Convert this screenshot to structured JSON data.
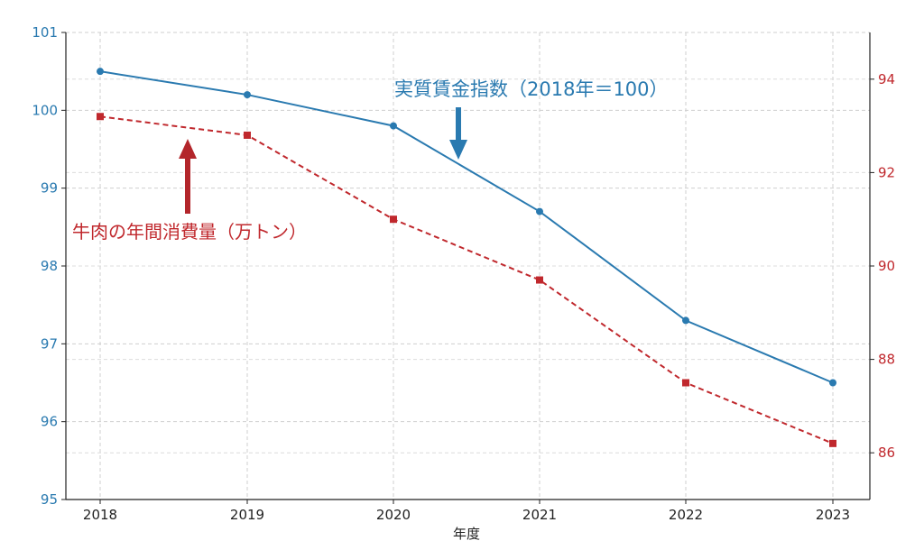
{
  "chart_data": {
    "type": "line",
    "x": [
      2018,
      2019,
      2020,
      2021,
      2022,
      2023
    ],
    "x_tick_labels": [
      "2018",
      "2019",
      "2020",
      "2021",
      "2022",
      "2023"
    ],
    "xlabel": "年度",
    "grid": true,
    "series": [
      {
        "name": "実質賃金指数（2018年＝100）",
        "axis": "left",
        "values": [
          100.5,
          100.2,
          99.8,
          98.7,
          97.3,
          96.5
        ],
        "color": "#2a7ab0",
        "line_style": "solid",
        "marker": "circle"
      },
      {
        "name": "牛肉の年間消費量（万トン）",
        "axis": "right",
        "values": [
          93.2,
          92.8,
          91.0,
          89.7,
          87.5,
          86.2
        ],
        "color": "#c0282d",
        "line_style": "dashed",
        "marker": "square"
      }
    ],
    "y_left": {
      "ylim": [
        95,
        101
      ],
      "ticks": [
        95,
        96,
        97,
        98,
        99,
        100,
        101
      ],
      "tick_labels": [
        "95",
        "96",
        "97",
        "98",
        "99",
        "100",
        "101"
      ],
      "color": "#2a7ab0"
    },
    "y_right": {
      "ylim": [
        85,
        95
      ],
      "ticks": [
        86,
        88,
        90,
        92,
        94
      ],
      "tick_labels": [
        "86",
        "88",
        "90",
        "92",
        "94"
      ],
      "color": "#c0282d"
    },
    "annotations": [
      {
        "text": "実質賃金指数（2018年＝100）",
        "color": "#2a7ab0",
        "arrow": "down"
      },
      {
        "text": "牛肉の年間消費量（万トン）",
        "color": "#c0282d",
        "arrow": "up"
      }
    ]
  }
}
